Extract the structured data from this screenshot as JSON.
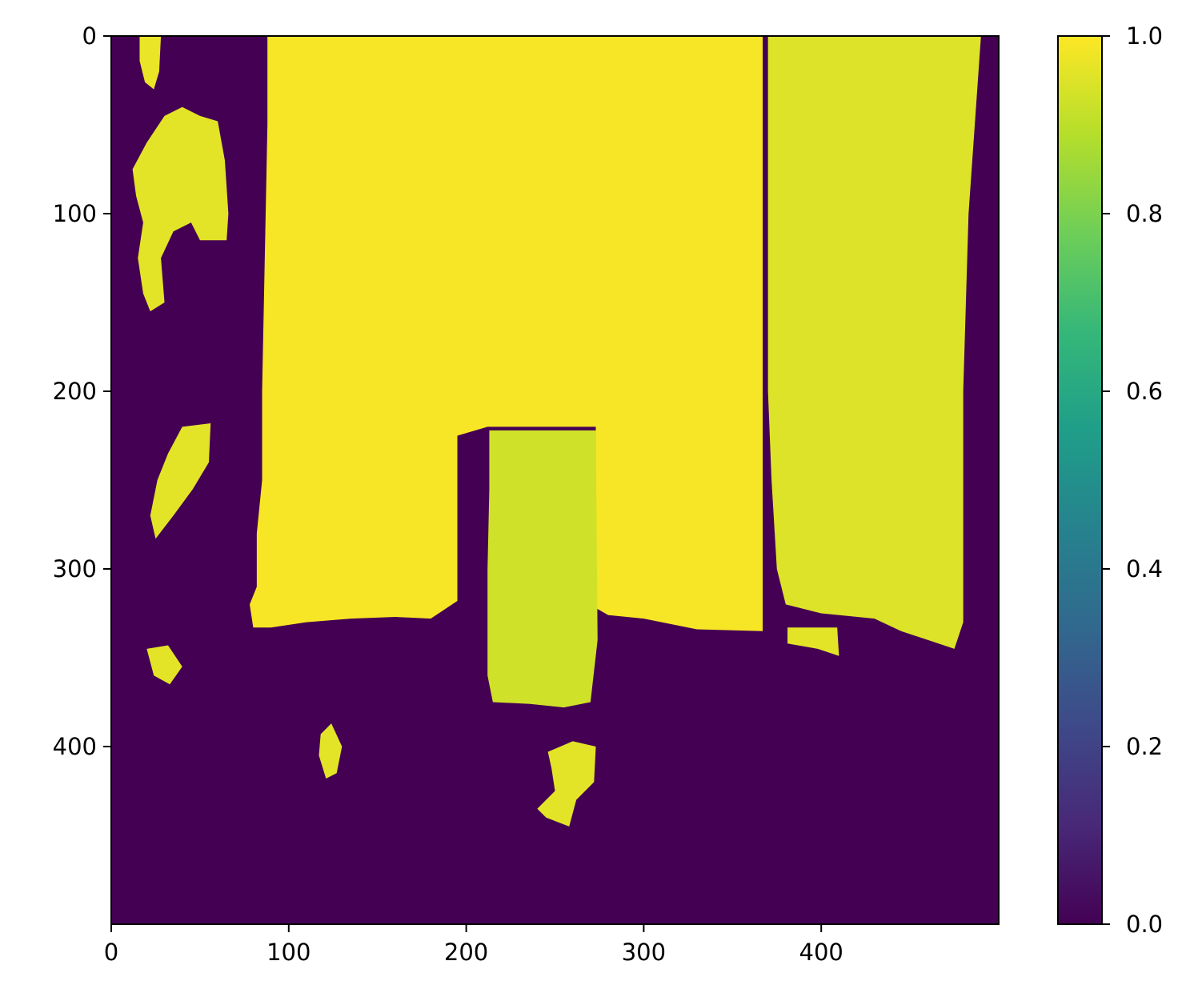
{
  "chart_data": {
    "type": "heatmap",
    "title": "",
    "xlabel": "",
    "ylabel": "",
    "image_width": 500,
    "image_height": 500,
    "xlim": [
      0,
      500
    ],
    "ylim": [
      500,
      0
    ],
    "x_ticks": [
      {
        "value": 0,
        "label": "0"
      },
      {
        "value": 100,
        "label": "100"
      },
      {
        "value": 200,
        "label": "200"
      },
      {
        "value": 300,
        "label": "300"
      },
      {
        "value": 400,
        "label": "400"
      }
    ],
    "y_ticks": [
      {
        "value": 0,
        "label": "0"
      },
      {
        "value": 100,
        "label": "100"
      },
      {
        "value": 200,
        "label": "200"
      },
      {
        "value": 300,
        "label": "300"
      },
      {
        "value": 400,
        "label": "400"
      }
    ],
    "colormap": "viridis",
    "colorbar": {
      "range": [
        0.0,
        1.0
      ],
      "ticks": [
        {
          "value": 0.0,
          "label": "0.0"
        },
        {
          "value": 0.2,
          "label": "0.2"
        },
        {
          "value": 0.4,
          "label": "0.4"
        },
        {
          "value": 0.6,
          "label": "0.6"
        },
        {
          "value": 0.8,
          "label": "0.8"
        },
        {
          "value": 1.0,
          "label": "1.0"
        }
      ],
      "stops": [
        "#440154",
        "#482878",
        "#3e4989",
        "#31688e",
        "#26828e",
        "#1f9e89",
        "#35b779",
        "#6ece58",
        "#b5de2b",
        "#fde725"
      ]
    },
    "background_value": 0.0,
    "regions": [
      {
        "name": "large-block",
        "value": 0.99,
        "polygon": [
          [
            88,
            0
          ],
          [
            367,
            0
          ],
          [
            367,
            335
          ],
          [
            330,
            334
          ],
          [
            300,
            328
          ],
          [
            280,
            326
          ],
          [
            273,
            322
          ],
          [
            273,
            220
          ],
          [
            212,
            220
          ],
          [
            195,
            225
          ],
          [
            195,
            318
          ],
          [
            180,
            328
          ],
          [
            160,
            327
          ],
          [
            135,
            328
          ],
          [
            110,
            330
          ],
          [
            90,
            333
          ],
          [
            80,
            333
          ],
          [
            78,
            320
          ],
          [
            82,
            310
          ],
          [
            82,
            280
          ],
          [
            85,
            250
          ],
          [
            85,
            200
          ],
          [
            86,
            150
          ],
          [
            87,
            100
          ],
          [
            88,
            50
          ]
        ]
      },
      {
        "name": "inner-block",
        "value": 0.93,
        "polygon": [
          [
            213,
            222
          ],
          [
            273,
            222
          ],
          [
            274,
            340
          ],
          [
            270,
            375
          ],
          [
            255,
            378
          ],
          [
            236,
            376
          ],
          [
            215,
            375
          ],
          [
            212,
            360
          ],
          [
            212,
            300
          ],
          [
            213,
            255
          ]
        ]
      },
      {
        "name": "right-noisy-region",
        "value": 0.95,
        "polygon": [
          [
            370,
            0
          ],
          [
            490,
            0
          ],
          [
            483,
            100
          ],
          [
            480,
            200
          ],
          [
            480,
            330
          ],
          [
            475,
            345
          ],
          [
            460,
            340
          ],
          [
            445,
            335
          ],
          [
            430,
            328
          ],
          [
            400,
            325
          ],
          [
            380,
            320
          ],
          [
            375,
            300
          ],
          [
            372,
            250
          ],
          [
            370,
            200
          ],
          [
            370,
            150
          ],
          [
            370,
            100
          ]
        ]
      },
      {
        "name": "small-rect",
        "value": 0.96,
        "polygon": [
          [
            381,
            333
          ],
          [
            409,
            333
          ],
          [
            410,
            349
          ],
          [
            398,
            345
          ],
          [
            381,
            342
          ]
        ]
      },
      {
        "name": "speck-top-left",
        "value": 0.97,
        "polygon": [
          [
            16,
            0
          ],
          [
            28,
            0
          ],
          [
            27,
            20
          ],
          [
            24,
            30
          ],
          [
            19,
            26
          ],
          [
            16,
            14
          ]
        ]
      },
      {
        "name": "blob-upper-left",
        "value": 0.96,
        "polygon": [
          [
            12,
            75
          ],
          [
            20,
            60
          ],
          [
            30,
            45
          ],
          [
            40,
            40
          ],
          [
            50,
            45
          ],
          [
            60,
            48
          ],
          [
            64,
            70
          ],
          [
            66,
            100
          ],
          [
            65,
            115
          ],
          [
            50,
            115
          ],
          [
            45,
            105
          ],
          [
            35,
            110
          ],
          [
            28,
            125
          ],
          [
            30,
            150
          ],
          [
            22,
            155
          ],
          [
            18,
            145
          ],
          [
            15,
            125
          ],
          [
            18,
            105
          ],
          [
            14,
            90
          ]
        ]
      },
      {
        "name": "blob-mid-left",
        "value": 0.96,
        "polygon": [
          [
            40,
            220
          ],
          [
            56,
            218
          ],
          [
            55,
            240
          ],
          [
            46,
            255
          ],
          [
            35,
            270
          ],
          [
            25,
            283
          ],
          [
            22,
            270
          ],
          [
            26,
            250
          ],
          [
            32,
            235
          ]
        ]
      },
      {
        "name": "blob-left-small",
        "value": 0.96,
        "polygon": [
          [
            20,
            345
          ],
          [
            32,
            343
          ],
          [
            40,
            355
          ],
          [
            33,
            365
          ],
          [
            24,
            360
          ]
        ]
      },
      {
        "name": "blob-bottom-center-left",
        "value": 0.96,
        "polygon": [
          [
            118,
            393
          ],
          [
            124,
            387
          ],
          [
            130,
            400
          ],
          [
            127,
            415
          ],
          [
            121,
            418
          ],
          [
            117,
            405
          ]
        ]
      },
      {
        "name": "blob-bottom-center",
        "value": 0.96,
        "polygon": [
          [
            246,
            403
          ],
          [
            260,
            397
          ],
          [
            273,
            400
          ],
          [
            272,
            420
          ],
          [
            262,
            430
          ],
          [
            258,
            445
          ],
          [
            245,
            440
          ],
          [
            240,
            435
          ],
          [
            250,
            425
          ],
          [
            248,
            412
          ]
        ]
      }
    ]
  }
}
